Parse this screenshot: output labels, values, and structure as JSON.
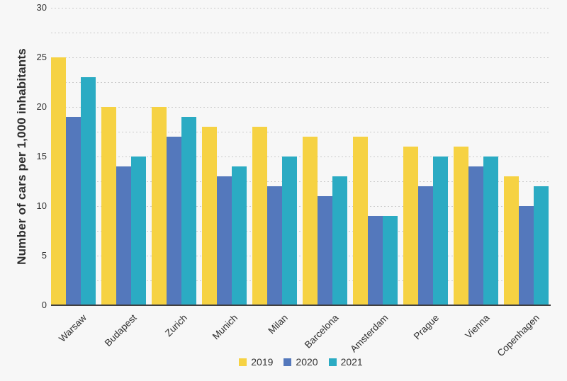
{
  "chart_data": {
    "type": "bar",
    "title": "",
    "ylabel": "Number of cars per 1,000 inhabitants",
    "xlabel": "",
    "categories": [
      "Warsaw",
      "Budapest",
      "Zurich",
      "Munich",
      "Milan",
      "Barcelona",
      "Amsterdam",
      "Prague",
      "Vienna",
      "Copenhagen"
    ],
    "series": [
      {
        "name": "2019",
        "color": "#f6d243",
        "values": [
          25,
          20,
          20,
          18,
          18,
          17,
          17,
          16,
          16,
          13
        ]
      },
      {
        "name": "2020",
        "color": "#5478bc",
        "values": [
          19,
          14,
          17,
          13,
          12,
          11,
          9,
          12,
          14,
          10
        ]
      },
      {
        "name": "2021",
        "color": "#2babc3",
        "values": [
          23,
          15,
          19,
          14,
          15,
          13,
          9,
          15,
          15,
          12
        ]
      }
    ],
    "ylim": [
      0,
      30
    ],
    "yticks": [
      0,
      5,
      10,
      15,
      20,
      25,
      30
    ],
    "grid_step": 2.5,
    "grid": "horizontal-dotted",
    "legend_position": "bottom-center",
    "bar_orientation": "vertical"
  },
  "colors": {
    "background": "#f7f7f7",
    "grid": "#cbcbcb",
    "axis": "#404040",
    "text": "#333333"
  }
}
